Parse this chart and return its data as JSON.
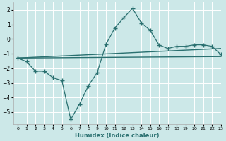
{
  "xlabel": "Humidex (Indice chaleur)",
  "background_color": "#cce8e8",
  "grid_color": "#ffffff",
  "line_color": "#2a7070",
  "xlim": [
    -0.5,
    23
  ],
  "ylim": [
    -5.8,
    2.5
  ],
  "x_ticks": [
    0,
    1,
    2,
    3,
    4,
    5,
    6,
    7,
    8,
    9,
    10,
    11,
    12,
    13,
    14,
    15,
    16,
    17,
    18,
    19,
    20,
    21,
    22,
    23
  ],
  "y_ticks": [
    -5,
    -4,
    -3,
    -2,
    -1,
    0,
    1,
    2
  ],
  "curve1_x": [
    0,
    1,
    2,
    3,
    4,
    5,
    6,
    7,
    8,
    9,
    10,
    11,
    12,
    13,
    14,
    15,
    16,
    17,
    18,
    19,
    20,
    21,
    22,
    23
  ],
  "curve1_y": [
    -1.3,
    -1.55,
    -2.2,
    -2.2,
    -2.65,
    -2.85,
    -5.5,
    -4.45,
    -3.2,
    -2.3,
    -0.35,
    0.75,
    1.45,
    2.1,
    1.1,
    0.6,
    -0.4,
    -0.65,
    -0.5,
    -0.5,
    -0.4,
    -0.4,
    -0.5,
    -1.05
  ],
  "curve2_x": [
    0,
    23
  ],
  "curve2_y": [
    -1.3,
    -0.65
  ],
  "curve3_x": [
    0,
    23
  ],
  "curve3_y": [
    -1.3,
    -1.2
  ]
}
